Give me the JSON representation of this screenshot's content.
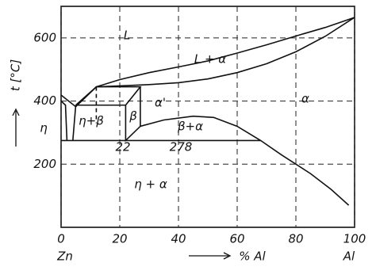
{
  "chart_data": {
    "type": "line",
    "y_label": "t [°C]",
    "x_label": "% Al",
    "xlim": [
      0,
      100
    ],
    "xticks": [
      0,
      20,
      40,
      60,
      80,
      100
    ],
    "ylim": [
      0,
      700
    ],
    "yticks": [
      200,
      400,
      600
    ],
    "grid": true,
    "color": "#111111",
    "annotations": [
      "L",
      "L + α",
      "α'",
      "α",
      "η",
      "η+β",
      "β",
      "β+α",
      "22",
      "278",
      "η + α",
      "Zn",
      "Al"
    ],
    "series": [
      {
        "x": [
          0,
          5,
          12,
          20,
          30,
          40,
          50,
          60,
          70,
          80,
          90,
          100
        ],
        "values": [
          419,
          382,
          445,
          468,
          490,
          508,
          527,
          552,
          578,
          606,
          633,
          665
        ]
      },
      {
        "x": [
          12,
          20,
          30,
          40,
          50,
          60,
          70,
          80,
          90,
          100
        ],
        "values": [
          445,
          448,
          452,
          458,
          470,
          490,
          518,
          556,
          605,
          665
        ]
      },
      {
        "x": [
          5,
          12,
          27,
          22,
          5
        ],
        "values": [
          387,
          445,
          445,
          387,
          387
        ]
      },
      {
        "x": [
          22,
          22,
          27,
          27
        ],
        "values": [
          387,
          275,
          320,
          445
        ]
      },
      {
        "x": [
          0,
          68
        ],
        "values": [
          275,
          275
        ]
      },
      {
        "x": [
          27,
          35,
          45,
          52,
          60,
          68,
          75,
          85,
          92,
          98
        ],
        "values": [
          320,
          340,
          352,
          348,
          320,
          275,
          230,
          170,
          120,
          70
        ]
      },
      {
        "x": [
          0,
          1.5,
          2
        ],
        "values": [
          400,
          387,
          275
        ]
      },
      {
        "x": [
          5,
          4
        ],
        "values": [
          387,
          275
        ]
      },
      {
        "x": [
          12,
          12
        ],
        "values": [
          445,
          330
        ],
        "dash": true
      }
    ]
  }
}
